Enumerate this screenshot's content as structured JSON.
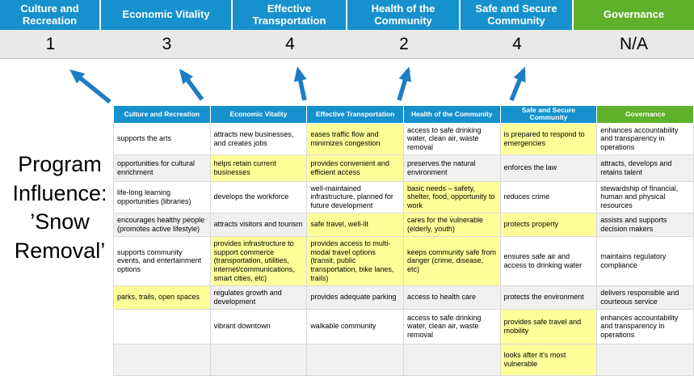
{
  "colors": {
    "header_blue": "#1691cd",
    "governance_green": "#5fb12c",
    "highlight_yellow": "#ffff99",
    "arrow_blue": "#1d7dc4",
    "score_strip_gray": "#e9e9e9",
    "band_gray": "#f0f0f0"
  },
  "program_label": {
    "lines": [
      "Program",
      "Influence:",
      "’Snow",
      "Removal’"
    ]
  },
  "scoreboard": {
    "columns": [
      {
        "label": "Culture and Recreation",
        "score": "1"
      },
      {
        "label": "Economic Vitality",
        "score": "3"
      },
      {
        "label": "Effective Transportation",
        "score": "4"
      },
      {
        "label": "Health of the Community",
        "score": "2"
      },
      {
        "label": "Safe and Secure Community",
        "score": "4"
      },
      {
        "label": "Governance",
        "score": "N/A"
      }
    ]
  },
  "table": {
    "headers": [
      "Culture and Recreation",
      "Economic Vitality",
      "Effective Transportation",
      "Health of the Community",
      "Safe and Secure Community",
      "Governance"
    ],
    "rows": [
      [
        {
          "text": "supports the arts",
          "highlight": false
        },
        {
          "text": "attracts new businesses, and creates jobs",
          "highlight": false
        },
        {
          "text": "eases traffic flow and minimizes congestion",
          "highlight": true
        },
        {
          "text": "access to safe drinking water, clean air, waste removal",
          "highlight": false
        },
        {
          "text": "is prepared to respond to emergencies",
          "highlight": true
        },
        {
          "text": "enhances accountability and transparency in operations",
          "highlight": false
        }
      ],
      [
        {
          "text": "opportunities for cultural enrichment",
          "highlight": false
        },
        {
          "text": "helps retain current businesses",
          "highlight": true
        },
        {
          "text": "provides convenient and efficient access",
          "highlight": true
        },
        {
          "text": "preserves the natural environment",
          "highlight": false
        },
        {
          "text": "enforces the law",
          "highlight": false
        },
        {
          "text": "attracts, develops and retains talent",
          "highlight": false
        }
      ],
      [
        {
          "text": "life-long learning opportunities (libraries)",
          "highlight": false
        },
        {
          "text": "develops the workforce",
          "highlight": false
        },
        {
          "text": "well-maintained infrastructure, planned for future development",
          "highlight": false
        },
        {
          "text": "basic needs – safety, shelter, food, opportunity to work",
          "highlight": true
        },
        {
          "text": "reduces crime",
          "highlight": false
        },
        {
          "text": "stewardship of financial, human and physical resources",
          "highlight": false
        }
      ],
      [
        {
          "text": "encourages healthy people (promotes active lifestyle)",
          "highlight": false
        },
        {
          "text": "attracts visitors and tourism",
          "highlight": false
        },
        {
          "text": "safe travel, well-lit",
          "highlight": true
        },
        {
          "text": "cares for the vulnerable (elderly, youth)",
          "highlight": true
        },
        {
          "text": "protects property",
          "highlight": true
        },
        {
          "text": "assists and supports decision makers",
          "highlight": false
        }
      ],
      [
        {
          "text": "supports community events, and entertainment options",
          "highlight": false
        },
        {
          "text": "provides infrastructure to support commerce (transportation, utilities, internet/communications, smart cities, etc)",
          "highlight": true
        },
        {
          "text": "provides access to multi-modal travel options (transit, public transportation, bike lanes, trails)",
          "highlight": true
        },
        {
          "text": "keeps community safe from danger (crime, disease, etc)",
          "highlight": true
        },
        {
          "text": "ensures safe air and access to drinking water",
          "highlight": false
        },
        {
          "text": "maintains regulatory compliance",
          "highlight": false
        }
      ],
      [
        {
          "text": "parks, trails, open spaces",
          "highlight": true
        },
        {
          "text": "regulates growth and development",
          "highlight": false
        },
        {
          "text": "provides adequate parking",
          "highlight": false
        },
        {
          "text": "access to health care",
          "highlight": false
        },
        {
          "text": "protects the environment",
          "highlight": false
        },
        {
          "text": "delivers responsible and courteous service",
          "highlight": false
        }
      ],
      [
        {
          "text": "",
          "highlight": false
        },
        {
          "text": "vibrant downtown",
          "highlight": false
        },
        {
          "text": "walkable community",
          "highlight": false
        },
        {
          "text": "access to safe drinking water, clean air, waste removal",
          "highlight": false
        },
        {
          "text": "provides safe travel and mobility",
          "highlight": true
        },
        {
          "text": "enhances accountability and transparency in operations",
          "highlight": false
        }
      ],
      [
        {
          "text": "",
          "highlight": false
        },
        {
          "text": "",
          "highlight": false
        },
        {
          "text": "",
          "highlight": false
        },
        {
          "text": "",
          "highlight": false
        },
        {
          "text": "looks after it's most vulnerable",
          "highlight": true
        },
        {
          "text": "",
          "highlight": false
        }
      ]
    ]
  }
}
